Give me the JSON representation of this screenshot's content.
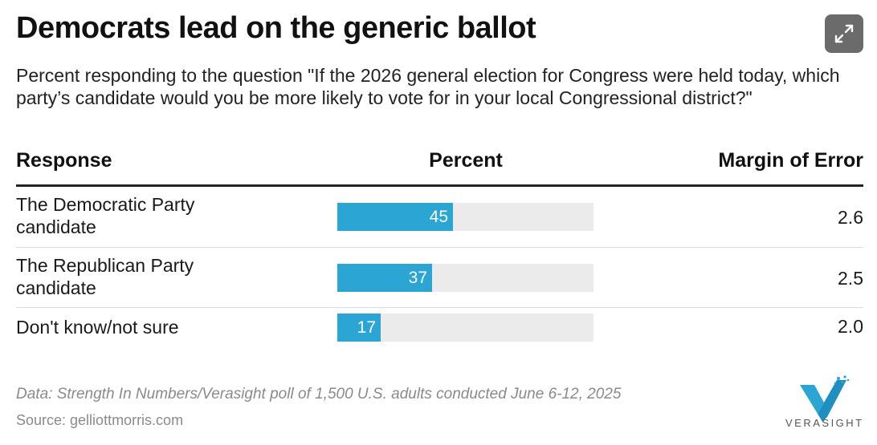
{
  "title": "Democrats lead on the generic ballot",
  "subtitle": "Percent responding to the question \"If the 2026 general election for Congress were held today, which party’s candidate would you be more likely to vote for in your local Congressional district?\"",
  "table": {
    "headers": {
      "response": "Response",
      "percent": "Percent",
      "moe": "Margin of Error"
    }
  },
  "chart_data": {
    "type": "table",
    "title": "Democrats lead on the generic ballot",
    "columns": [
      "Response",
      "Percent",
      "Margin of Error"
    ],
    "max": 100,
    "rows": [
      {
        "label": "The Democratic Party candidate",
        "value": 45,
        "value_label": "45",
        "moe": "2.6"
      },
      {
        "label": "The Republican Party candidate",
        "value": 37,
        "value_label": "37",
        "moe": "2.5"
      },
      {
        "label": "Don't know/not sure",
        "value": 17,
        "value_label": "17",
        "moe": "2.0"
      }
    ]
  },
  "footer": {
    "note": "Data: Strength In Numbers/Verasight poll of 1,500 U.S. adults conducted June 6-12, 2025",
    "source": "Source: gelliottmorris.com"
  },
  "logo": {
    "text": "VERASIGHT"
  },
  "colors": {
    "bar": "#2aa5d4",
    "track": "#ebebeb"
  },
  "icons": {
    "expand": "expand-icon"
  }
}
